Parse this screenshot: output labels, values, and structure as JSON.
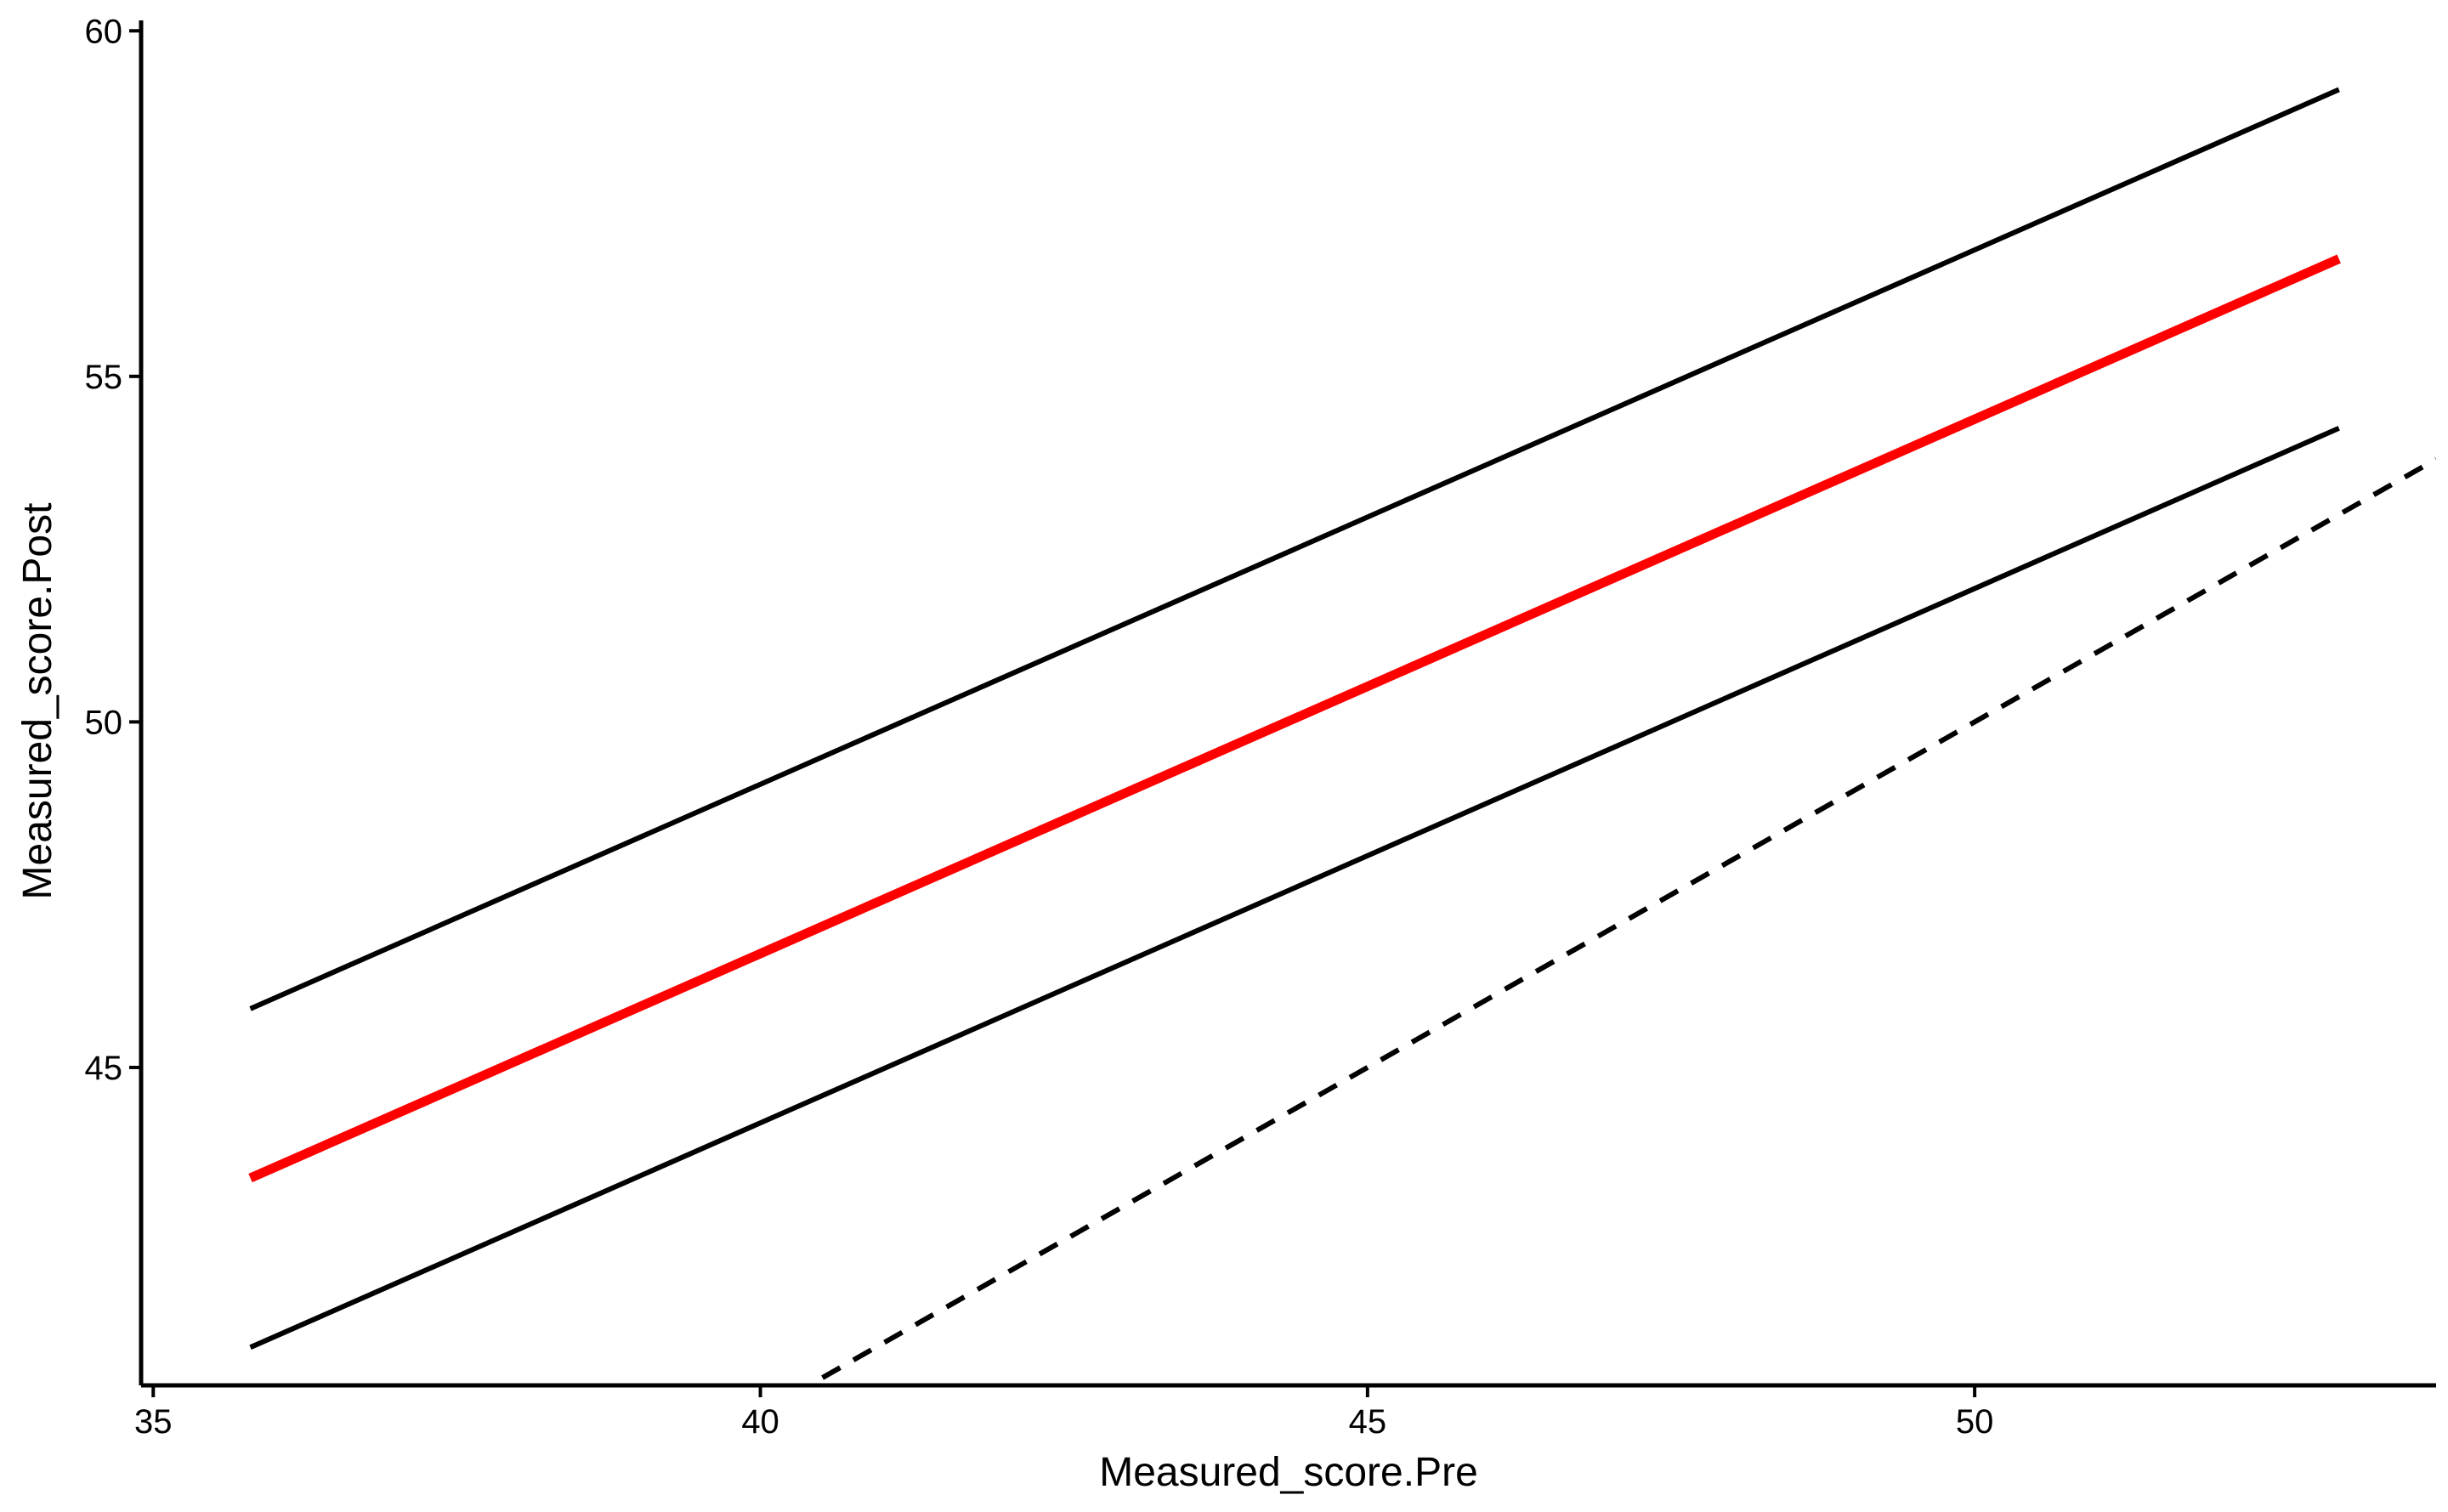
{
  "chart_data": {
    "type": "line",
    "title": "",
    "xlabel": "Measured_score.Pre",
    "ylabel": "Measured_score.Post",
    "xlim": [
      34.9,
      53.8
    ],
    "ylim": [
      40.4,
      60.2
    ],
    "xticks": [
      35,
      40,
      45,
      50
    ],
    "yticks": [
      45,
      50,
      55,
      60
    ],
    "grid": false,
    "legend": "none",
    "series": [
      {
        "color": "#000000",
        "style": "solid",
        "points": [
          [
            35.8,
            45.85
          ],
          [
            53.0,
            59.15
          ]
        ]
      },
      {
        "color": "#ff0000",
        "style": "solid",
        "points": [
          [
            35.8,
            43.4
          ],
          [
            53.0,
            56.7
          ]
        ]
      },
      {
        "color": "#000000",
        "style": "solid",
        "points": [
          [
            35.8,
            40.95
          ],
          [
            53.0,
            54.25
          ]
        ]
      },
      {
        "color": "#000000",
        "style": "dashed",
        "points": [
          [
            40.0,
            40.0
          ],
          [
            53.8,
            53.8
          ]
        ]
      }
    ]
  }
}
